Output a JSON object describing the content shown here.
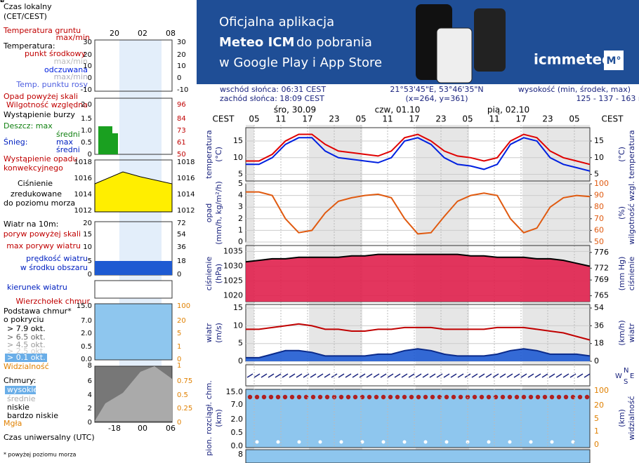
{
  "banner": {
    "line1": "Oficjalna aplikacja",
    "line2a": "Meteo ICM",
    "line2b": "do pobrania",
    "line3": "w Google Play i App Store",
    "logo": "icmmeteo",
    "badge": "M°"
  },
  "info": {
    "sunrise": "wschód słońca: 06:31 CEST",
    "sunset": "zachód słońca: 18:09 CEST",
    "coords": "21°53'45\"E, 53°46'35\"N",
    "grid": "(x=264,  y=361)",
    "elev_label": "wysokość (min, środek, max)",
    "elev": "125 - 137 - 163 m"
  },
  "time": {
    "zone": "CEST",
    "days": [
      "śro, 30.09",
      "czw, 01.10",
      "pią, 02.10"
    ],
    "hours": [
      "05",
      "11",
      "17",
      "23",
      "05",
      "11",
      "17",
      "23",
      "05",
      "11",
      "17",
      "23",
      "05"
    ]
  },
  "chart_data": [
    {
      "type": "line",
      "ylabel": "temperatura",
      "yunit": "(°C)",
      "y2label": "temperatura",
      "y2unit": "(°C)",
      "categories": [
        null,
        null,
        null,
        null,
        null,
        null,
        null,
        null,
        null,
        null,
        null,
        null,
        null,
        null,
        null,
        null,
        null,
        null,
        null,
        null,
        null,
        null,
        null,
        null,
        null,
        null,
        null
      ],
      "ylim": [
        3,
        19
      ],
      "yticks": [
        5,
        10,
        15
      ],
      "y2lim": [
        3,
        19
      ],
      "y2ticks": [
        5,
        10,
        15
      ],
      "series": [
        {
          "color": "#e00000",
          "values": [
            9,
            9,
            11,
            15,
            17,
            17,
            14,
            12,
            11.5,
            11,
            10.5,
            12,
            16,
            17,
            15,
            12,
            10.5,
            10,
            9,
            10,
            15,
            17,
            16,
            12,
            10,
            9,
            8
          ]
        },
        {
          "color": "#0020e0",
          "values": [
            8,
            8,
            10,
            14,
            16,
            16,
            12,
            10,
            9.5,
            9,
            8.5,
            10,
            15,
            16,
            14,
            10,
            8,
            7.5,
            6.5,
            8,
            14,
            16,
            15,
            10,
            8,
            7,
            6
          ]
        }
      ]
    },
    {
      "type": "line",
      "ylabel": "opad",
      "yunit": "(mm/h, kg/m²/h)",
      "y2label": "wilgotność wzgl.",
      "y2unit": "(%)",
      "categories": [
        null,
        null,
        null,
        null,
        null,
        null,
        null,
        null,
        null,
        null,
        null,
        null,
        null,
        null,
        null,
        null,
        null,
        null,
        null,
        null,
        null,
        null,
        null,
        null,
        null,
        null,
        null
      ],
      "ylim": [
        0,
        5
      ],
      "yticks": [
        0,
        1,
        2,
        3,
        4,
        5
      ],
      "y2lim": [
        50,
        100
      ],
      "y2ticks": [
        50,
        60,
        70,
        80,
        90,
        100
      ],
      "series": [
        {
          "color": "#e05a10",
          "axis": "y2",
          "values": [
            93,
            93,
            90,
            70,
            58,
            60,
            75,
            85,
            88,
            90,
            91,
            88,
            70,
            57,
            58,
            72,
            85,
            90,
            92,
            90,
            70,
            58,
            62,
            80,
            88,
            90,
            89
          ]
        }
      ]
    },
    {
      "type": "area",
      "ylabel": "ciśnienie",
      "yunit": "(hPa)",
      "y2label": "ciśnienie",
      "y2unit": "(mm Hg)",
      "categories": [
        null,
        null,
        null,
        null,
        null,
        null,
        null,
        null,
        null,
        null,
        null,
        null,
        null,
        null,
        null,
        null,
        null,
        null,
        null,
        null,
        null,
        null,
        null,
        null,
        null,
        null,
        null
      ],
      "ylim": [
        1018,
        1037
      ],
      "yticks": [
        1020,
        1025,
        1030,
        1035
      ],
      "y2lim": [
        763.5,
        777.75
      ],
      "y2ticks": [
        765,
        769,
        772,
        776
      ],
      "series": [
        {
          "color": "#000000",
          "fill": "#e0204c",
          "values": [
            1031.5,
            1032,
            1032.5,
            1032.5,
            1033,
            1033,
            1033,
            1033,
            1033.5,
            1033.5,
            1034,
            1034,
            1034,
            1034,
            1034,
            1034,
            1034,
            1033.5,
            1033.5,
            1033,
            1033,
            1033,
            1032.5,
            1032.5,
            1032,
            1031,
            1030
          ]
        }
      ]
    },
    {
      "type": "area",
      "ylabel": "wiatr",
      "yunit": "(m/s)",
      "y2label": "wiatr",
      "y2unit": "(km/h)",
      "categories": [
        null,
        null,
        null,
        null,
        null,
        null,
        null,
        null,
        null,
        null,
        null,
        null,
        null,
        null,
        null,
        null,
        null,
        null,
        null,
        null,
        null,
        null,
        null,
        null,
        null,
        null,
        null
      ],
      "ylim": [
        0,
        16
      ],
      "yticks": [
        0,
        5,
        10,
        15
      ],
      "y2lim": [
        0,
        57.6
      ],
      "y2ticks": [
        0,
        18,
        36,
        54
      ],
      "series": [
        {
          "color": "#0a2a8a",
          "fill": "#1e5ad2",
          "values": [
            1,
            1,
            2,
            3,
            3,
            2.5,
            1.5,
            1.5,
            1.5,
            1.5,
            2,
            2,
            3,
            3.5,
            3,
            2,
            1.5,
            1.5,
            1.5,
            2,
            3,
            3.5,
            3,
            2,
            2,
            2,
            1.5
          ]
        },
        {
          "color": "#c00000",
          "values": [
            9,
            9,
            9.5,
            10,
            10.5,
            10,
            9,
            9,
            8.5,
            8.5,
            9,
            9,
            9.5,
            9.5,
            9.5,
            9,
            9,
            9,
            9,
            9.5,
            9.5,
            9.5,
            9,
            8.5,
            8,
            7,
            6
          ]
        }
      ]
    }
  ],
  "winddir": {
    "n": "N",
    "s": "S",
    "e": "E",
    "w": "W"
  },
  "clouds": {
    "ylabel": "pion. rozciągł. chm.",
    "yunit": "(km)",
    "y2label": "widzialność",
    "y2unit": "(km)",
    "left": [
      "15.0",
      "7.0",
      "2.0",
      "0.5",
      "0.0"
    ],
    "right": [
      "100",
      "20",
      "5",
      "1",
      "0"
    ],
    "bottom": "8"
  },
  "legend": {
    "local_time": "Czas lokalny",
    "local_zone": "(CET/CEST)",
    "local_hours": [
      "20",
      "02",
      "08"
    ],
    "ground_temp": "Temperatura gruntu",
    "ground_maxmin": "max/min",
    "temp": "Temperatura:",
    "temp_mid": "punkt środkowy",
    "temp_maxmin": "max/min",
    "feels": "odczuwana",
    "feels_maxmin": "max/min",
    "dew": "Temp. punktu rosy",
    "temp_ticks": [
      "30",
      "20",
      "10",
      "0",
      "-10"
    ],
    "precip_over": "Opad powyżej skali",
    "humidity": "Wilgotność względna",
    "storm": "Wystąpienie burzy",
    "rain": "Deszcz: max",
    "rain_avg": "średni",
    "snow": "Śnieg:",
    "snow_max": "max",
    "snow_avg": "średni",
    "conv1": "Wystąpienie opadu",
    "conv2": "konwekcyjnego",
    "precip_left": [
      "2.0",
      "1.5",
      "1.0",
      "0.5",
      "0"
    ],
    "precip_right": [
      "96",
      "84",
      "73",
      "61",
      "50"
    ],
    "press1": "Ciśnienie",
    "press2": "zredukowane",
    "press3": "do poziomu morza",
    "press_ticks": [
      "1018",
      "1016",
      "1014",
      "1012"
    ],
    "wind": "Wiatr na 10m:",
    "gust_over": "poryw powyżej skali",
    "gust_max": "max porywy wiatru",
    "wind_speed": "prędkość wiatru",
    "wind_area": "w środku obszaru",
    "wind_left": [
      "20",
      "15",
      "10",
      "5",
      "0"
    ],
    "wind_right": [
      "72",
      "54",
      "36",
      "18",
      "0"
    ],
    "wind_dir": "kierunek wiatru",
    "cloud_top": "Wierzchołek chmur",
    "cloud_base1": "Podstawa chmur*",
    "cloud_base2": "o pokryciu",
    "okt": [
      "> 7.9 okt.",
      "> 6.5 okt.",
      "> 4.5 okt.",
      "> 2.5 okt.",
      "> 0.1 okt."
    ],
    "cb_left": [
      "15.0",
      "7.0",
      "2.0",
      "0.5",
      "0.0"
    ],
    "cb_right": [
      "100",
      "20",
      "5",
      "1",
      "0"
    ],
    "visibility": "Widzialność",
    "vis_left": "8",
    "vis_right": "1",
    "cover": "Chmury:",
    "high": "wysokie",
    "mid": "średnie",
    "low": "niskie",
    "vlow": "bardzo niskie",
    "fog": "Mgła",
    "cover_left": [
      "6",
      "4",
      "2",
      "0"
    ],
    "cover_right": [
      "0.75",
      "0.5",
      "0.25",
      "0"
    ],
    "utc_hours": [
      "-18",
      "00",
      "06"
    ],
    "utc": "Czas uniwersalny (UTC)",
    "footnote": "* powyżej poziomu morza"
  }
}
